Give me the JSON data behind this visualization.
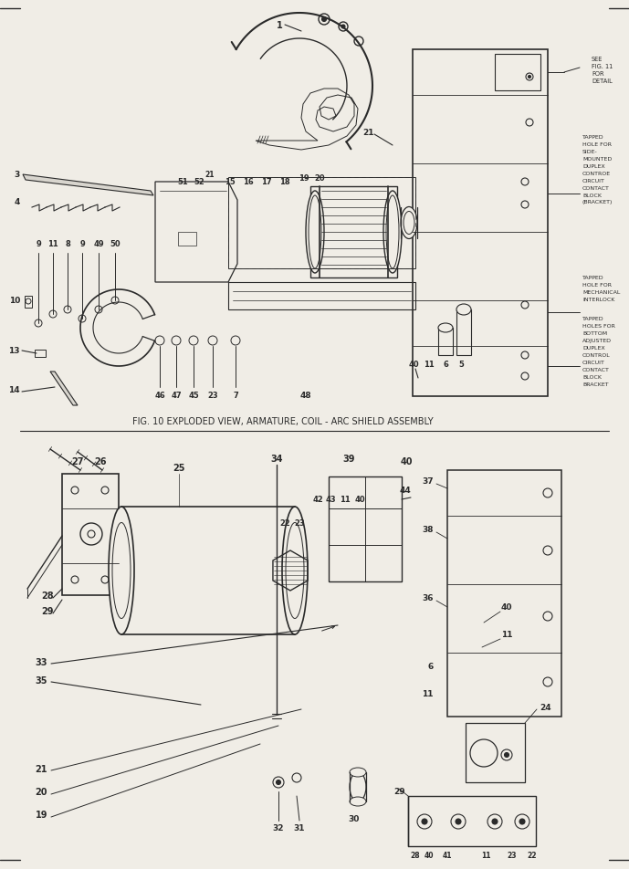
{
  "title": "FIG. 10 EXPLODED VIEW, ARMATURE, COIL - ARC SHIELD ASSEMBLY",
  "bg": "#f0ede6",
  "lc": "#2a2a2a",
  "fig_w": 6.89,
  "fig_h": 9.53,
  "dpi": 100,
  "see_fig": [
    "SEE",
    "FIG. 11",
    "FOR",
    "DETAIL"
  ],
  "ann1": [
    "TAPPED",
    "HOLE FOR",
    "SIDE-",
    "MOUNTED",
    "DUPLEX",
    "CONTROE",
    "CIRCUIT",
    "CONTACT",
    "BLOCK",
    "(BRACKET)"
  ],
  "ann2": [
    "TAPPED",
    "HOLE FOR",
    "MECHANICAL",
    "INTERLOCK"
  ],
  "ann3": [
    "TAPPED",
    "HOLES FOR",
    "BOTTOM",
    "ADJUSTED",
    "DUPLEX",
    "CONTROL",
    "CIRCUIT",
    "CONTACT",
    "BLOCK",
    "BRACKET"
  ]
}
